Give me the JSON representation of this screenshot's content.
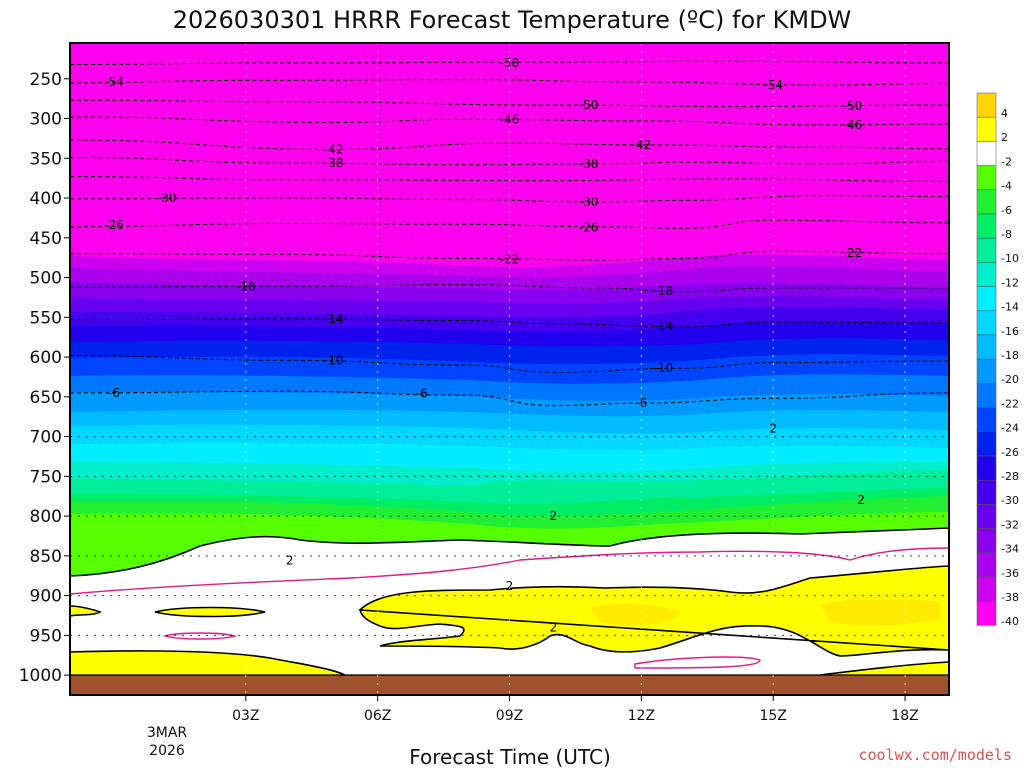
{
  "chart_data": {
    "type": "heatmap",
    "title": "2026030301 HRRR Forecast Temperature (ºC) for KMDW",
    "xlabel": "Forecast Time (UTC)",
    "ylabel": "",
    "x_range_hours": [
      -1,
      19
    ],
    "x_ticks": [
      {
        "hour": 3,
        "label": "03Z"
      },
      {
        "hour": 6,
        "label": "06Z"
      },
      {
        "hour": 9,
        "label": "09Z"
      },
      {
        "hour": 12,
        "label": "12Z"
      },
      {
        "hour": 15,
        "label": "15Z"
      },
      {
        "hour": 18,
        "label": "18Z"
      }
    ],
    "date_label": [
      "3MAR",
      "2026"
    ],
    "y_axis": "pressure_hPa",
    "y_range": [
      1025,
      205
    ],
    "y_ticks": [
      250,
      300,
      350,
      400,
      450,
      500,
      550,
      600,
      650,
      700,
      750,
      800,
      850,
      900,
      950,
      1000
    ],
    "ground_level_hPa": 1000,
    "colorbar": {
      "levels": [
        4,
        2,
        -2,
        -4,
        -6,
        -8,
        -10,
        -12,
        -14,
        -16,
        -18,
        -20,
        -22,
        -24,
        -26,
        -28,
        -30,
        -32,
        -34,
        -36,
        -38,
        -40
      ],
      "colors": [
        "#ffd400",
        "#ffff00",
        "#ffffff",
        "#55ff00",
        "#22ee33",
        "#00ee66",
        "#00ee99",
        "#00eecc",
        "#00eeff",
        "#00d8ff",
        "#00bbff",
        "#0099ff",
        "#0077ff",
        "#0044ff",
        "#0022ee",
        "#2200ee",
        "#4400ee",
        "#6600ee",
        "#8800ee",
        "#aa00ee",
        "#cc00ee",
        "#ff00ee"
      ]
    },
    "isotherms": [
      {
        "value": -58,
        "points": [
          [
            -1,
            232
          ],
          [
            4,
            230
          ],
          [
            10,
            229
          ],
          [
            14,
            228
          ],
          [
            19,
            230
          ]
        ]
      },
      {
        "value": -54,
        "points": [
          [
            -1,
            255
          ],
          [
            3,
            252
          ],
          [
            8,
            251
          ],
          [
            12,
            254
          ],
          [
            16,
            258
          ],
          [
            19,
            256
          ]
        ]
      },
      {
        "value": -50,
        "points": [
          [
            -1,
            277
          ],
          [
            4,
            279
          ],
          [
            10,
            283
          ],
          [
            14,
            285
          ],
          [
            19,
            283
          ]
        ]
      },
      {
        "value": -46,
        "points": [
          [
            -1,
            298
          ],
          [
            5,
            305
          ],
          [
            8,
            301
          ],
          [
            12,
            303
          ],
          [
            16,
            308
          ],
          [
            19,
            307
          ]
        ]
      },
      {
        "value": -42,
        "points": [
          [
            -1,
            327
          ],
          [
            5,
            339
          ],
          [
            9,
            331
          ],
          [
            12,
            333
          ],
          [
            16,
            336
          ],
          [
            19,
            338
          ]
        ]
      },
      {
        "value": -38,
        "points": [
          [
            -1,
            349
          ],
          [
            4,
            356
          ],
          [
            8,
            358
          ],
          [
            11,
            357
          ],
          [
            13,
            355
          ],
          [
            16,
            357
          ],
          [
            19,
            354
          ]
        ]
      },
      {
        "value": -34,
        "points": [
          [
            -1,
            373
          ],
          [
            4,
            377
          ],
          [
            10,
            378
          ],
          [
            14,
            376
          ],
          [
            19,
            379
          ]
        ]
      },
      {
        "value": -30,
        "points": [
          [
            -1,
            401
          ],
          [
            4,
            400
          ],
          [
            8,
            402
          ],
          [
            11,
            405
          ],
          [
            13,
            403
          ],
          [
            16,
            397
          ],
          [
            19,
            398
          ]
        ]
      },
      {
        "value": -26,
        "points": [
          [
            -1,
            436
          ],
          [
            4,
            432
          ],
          [
            8,
            433
          ],
          [
            11,
            436
          ],
          [
            13,
            438
          ],
          [
            15,
            428
          ],
          [
            19,
            431
          ]
        ]
      },
      {
        "value": -22,
        "points": [
          [
            -1,
            470
          ],
          [
            4,
            471
          ],
          [
            8,
            476
          ],
          [
            11,
            478
          ],
          [
            13,
            476
          ],
          [
            15,
            467
          ],
          [
            19,
            470
          ]
        ]
      },
      {
        "value": -18,
        "points": [
          [
            -1,
            512
          ],
          [
            4,
            511
          ],
          [
            8,
            509
          ],
          [
            11,
            513
          ],
          [
            13,
            518
          ],
          [
            15,
            513
          ],
          [
            19,
            513
          ]
        ]
      },
      {
        "value": -14,
        "points": [
          [
            -1,
            553
          ],
          [
            4,
            552
          ],
          [
            8,
            554
          ],
          [
            10,
            558
          ],
          [
            13,
            562
          ],
          [
            15,
            556
          ],
          [
            19,
            557
          ]
        ]
      },
      {
        "value": -10,
        "points": [
          [
            -1,
            598
          ],
          [
            4,
            604
          ],
          [
            8,
            610
          ],
          [
            10,
            619
          ],
          [
            13,
            614
          ],
          [
            15,
            607
          ],
          [
            19,
            605
          ]
        ]
      },
      {
        "value": -6,
        "points": [
          [
            -1,
            645
          ],
          [
            4,
            643
          ],
          [
            8,
            648
          ],
          [
            10,
            661
          ],
          [
            12,
            658
          ],
          [
            15,
            652
          ],
          [
            19,
            645
          ]
        ]
      }
    ],
    "contour_labels": [
      {
        "value": -58,
        "at": [
          9,
          230
        ]
      },
      {
        "value": -54,
        "at": [
          0,
          254
        ]
      },
      {
        "value": -54,
        "at": [
          15,
          258
        ]
      },
      {
        "value": -50,
        "at": [
          10.8,
          283
        ]
      },
      {
        "value": -50,
        "at": [
          16.8,
          284
        ]
      },
      {
        "value": -46,
        "at": [
          9,
          301
        ]
      },
      {
        "value": -46,
        "at": [
          16.8,
          308
        ]
      },
      {
        "value": -42,
        "at": [
          5,
          339
        ]
      },
      {
        "value": -42,
        "at": [
          12,
          333
        ]
      },
      {
        "value": -38,
        "at": [
          5,
          356
        ]
      },
      {
        "value": -38,
        "at": [
          10.8,
          357
        ]
      },
      {
        "value": -30,
        "at": [
          1.2,
          400
        ]
      },
      {
        "value": -30,
        "at": [
          10.8,
          405
        ]
      },
      {
        "value": -26,
        "at": [
          0,
          434
        ]
      },
      {
        "value": -26,
        "at": [
          10.8,
          437
        ]
      },
      {
        "value": -22,
        "at": [
          9,
          477
        ]
      },
      {
        "value": -22,
        "at": [
          16.8,
          469
        ]
      },
      {
        "value": -18,
        "at": [
          3,
          511
        ]
      },
      {
        "value": -18,
        "at": [
          12.5,
          517
        ]
      },
      {
        "value": -14,
        "at": [
          5,
          552
        ]
      },
      {
        "value": -14,
        "at": [
          12.5,
          561
        ]
      },
      {
        "value": -10,
        "at": [
          5,
          604
        ]
      },
      {
        "value": -10,
        "at": [
          12.5,
          614
        ]
      },
      {
        "value": -6,
        "at": [
          0,
          645
        ]
      },
      {
        "value": -6,
        "at": [
          7,
          646
        ]
      },
      {
        "value": -6,
        "at": [
          12,
          658
        ]
      },
      {
        "value": 2,
        "at": [
          15,
          690
        ]
      },
      {
        "value": 2,
        "at": [
          10,
          800
        ]
      },
      {
        "value": 2,
        "at": [
          17,
          780
        ]
      },
      {
        "value": 2,
        "at": [
          4,
          856
        ]
      },
      {
        "value": 2,
        "at": [
          9,
          888
        ]
      },
      {
        "value": 2,
        "at": [
          10,
          940
        ]
      }
    ]
  }
}
